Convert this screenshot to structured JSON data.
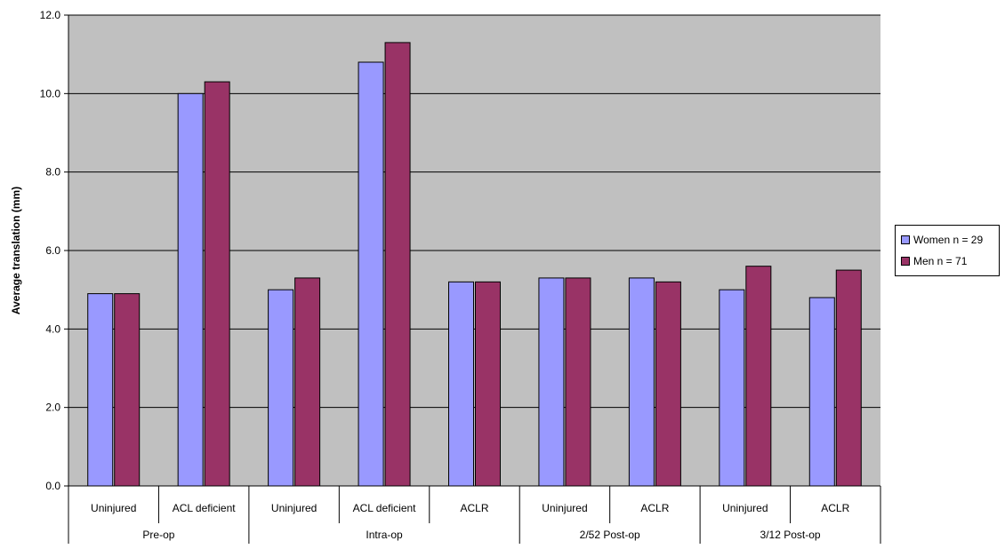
{
  "chart_data": {
    "type": "bar",
    "ylabel": "Average translation (mm)",
    "ylim": [
      0,
      12
    ],
    "y_ticks": [
      "0.0",
      "2.0",
      "4.0",
      "6.0",
      "8.0",
      "10.0",
      "12.0"
    ],
    "grid": true,
    "legend_position": "right",
    "groups": [
      {
        "label": "Pre-op",
        "categories": [
          "Uninjured",
          "ACL deficient"
        ]
      },
      {
        "label": "Intra-op",
        "categories": [
          "Uninjured",
          "ACL deficient",
          "ACLR"
        ]
      },
      {
        "label": "2/52 Post-op",
        "categories": [
          "Uninjured",
          "ACLR"
        ]
      },
      {
        "label": "3/12 Post-op",
        "categories": [
          "Uninjured",
          "ACLR"
        ]
      }
    ],
    "categories": [
      "Uninjured",
      "ACL deficient",
      "Uninjured",
      "ACL deficient",
      "ACLR",
      "Uninjured",
      "ACLR",
      "Uninjured",
      "ACLR"
    ],
    "series": [
      {
        "name": "Women n = 29",
        "color": "#9999ff",
        "values": [
          4.9,
          10.0,
          5.0,
          10.8,
          5.2,
          5.3,
          5.3,
          5.0,
          4.8
        ]
      },
      {
        "name": "Men n = 71",
        "color": "#993366",
        "values": [
          4.9,
          10.3,
          5.3,
          11.3,
          5.2,
          5.3,
          5.2,
          5.6,
          5.5
        ]
      }
    ],
    "plot_background": "#c0c0c0"
  }
}
